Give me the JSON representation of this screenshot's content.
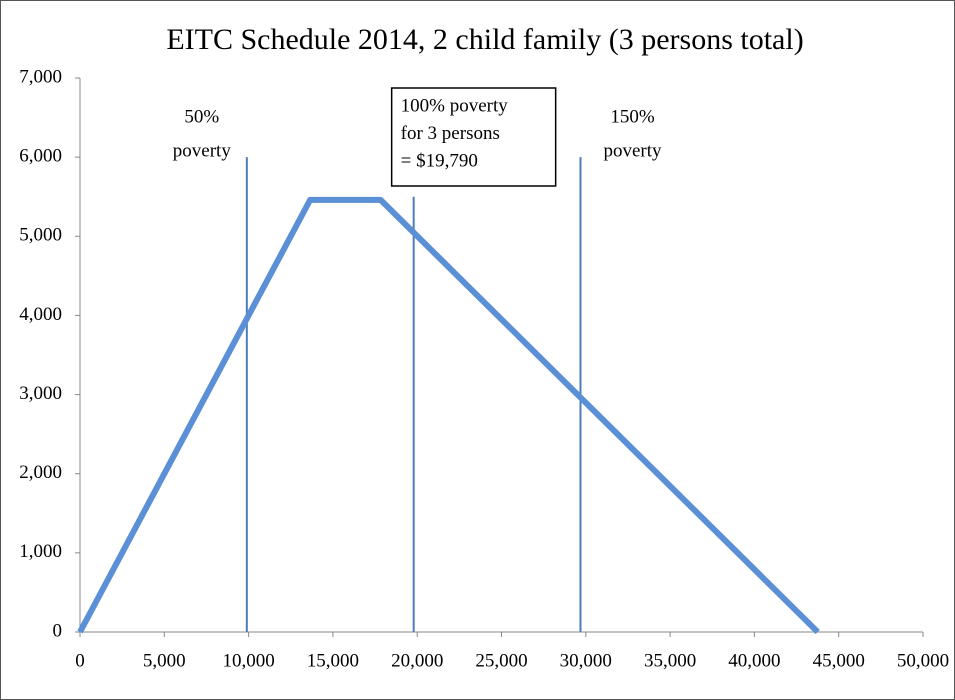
{
  "chart_data": {
    "type": "line",
    "title": "EITC Schedule 2014, 2 child family (3 persons total)",
    "x": [
      0,
      13650,
      17830,
      43756
    ],
    "series": [
      {
        "name": "EITC",
        "color": "#5b8fd6",
        "values": [
          0,
          5460,
          5460,
          0
        ]
      }
    ],
    "xlim": [
      0,
      50000
    ],
    "xticks": [
      0,
      {
        "value": 5000,
        "label": "5,000"
      },
      {
        "value": 10000,
        "label": "10,000"
      },
      {
        "value": 15000,
        "label": "15,000"
      },
      {
        "value": 20000,
        "label": "20,000"
      },
      {
        "value": 25000,
        "label": "25,000"
      },
      {
        "value": 30000,
        "label": "30,000"
      },
      {
        "value": 35000,
        "label": "35,000"
      },
      {
        "value": 40000,
        "label": "40,000"
      },
      {
        "value": 45000,
        "label": "45,000"
      },
      {
        "value": 50000,
        "label": "50,000"
      }
    ],
    "ylim": [
      0,
      7000
    ],
    "yticks": [
      0,
      {
        "value": 1000,
        "label": "1,000"
      },
      {
        "value": 2000,
        "label": "2,000"
      },
      {
        "value": 3000,
        "label": "3,000"
      },
      {
        "value": 4000,
        "label": "4,000"
      },
      {
        "value": 5000,
        "label": "5,000"
      },
      {
        "value": 6000,
        "label": "6,000"
      },
      {
        "value": 7000,
        "label": "7,000"
      }
    ],
    "grid": false,
    "reference_lines": [
      {
        "x": 9895,
        "top": 6000,
        "color": "#4a7ebb",
        "label": [
          "50%",
          "poverty"
        ]
      },
      {
        "x": 19790,
        "top": 5500,
        "color": "#4a7ebb",
        "label": [
          "100% poverty",
          "for 3 persons",
          "= $19,790"
        ],
        "boxed": true
      },
      {
        "x": 29685,
        "top": 6000,
        "color": "#4a7ebb",
        "label": [
          "150%",
          "poverty"
        ]
      }
    ]
  }
}
